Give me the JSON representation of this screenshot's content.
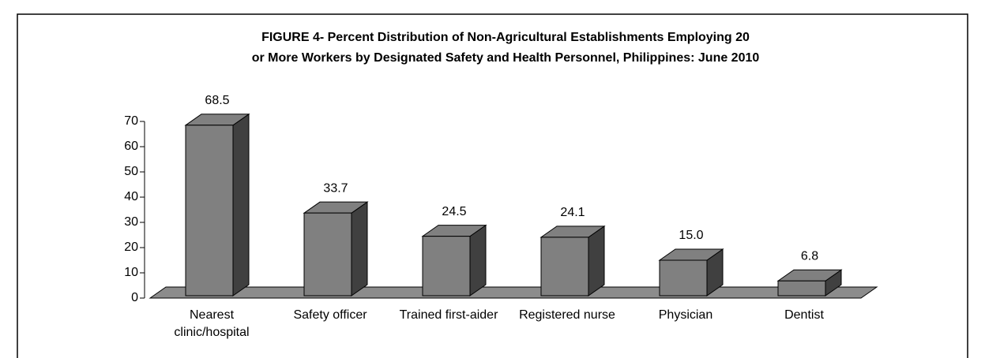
{
  "chart_data": {
    "type": "bar3d",
    "title": [
      "FIGURE 4- Percent Distribution of Non-Agricultural Establishments Employing 20",
      "or More Workers by Designated Safety and Health Personnel, Philippines: June  2010"
    ],
    "categories": [
      "Nearest clinic/hospital",
      "Safety officer",
      "Trained first-aider",
      "Registered nurse",
      "Physician",
      "Dentist"
    ],
    "values": [
      68.5,
      33.7,
      24.5,
      24.1,
      15.0,
      6.8
    ],
    "value_labels": [
      "68.5",
      "33.7",
      "24.5",
      "24.1",
      "15.0",
      "6.8"
    ],
    "color": "#808080",
    "ylim": [
      0,
      70
    ],
    "yticks": [
      0,
      10,
      20,
      30,
      40,
      50,
      60,
      70
    ],
    "grid": false
  }
}
